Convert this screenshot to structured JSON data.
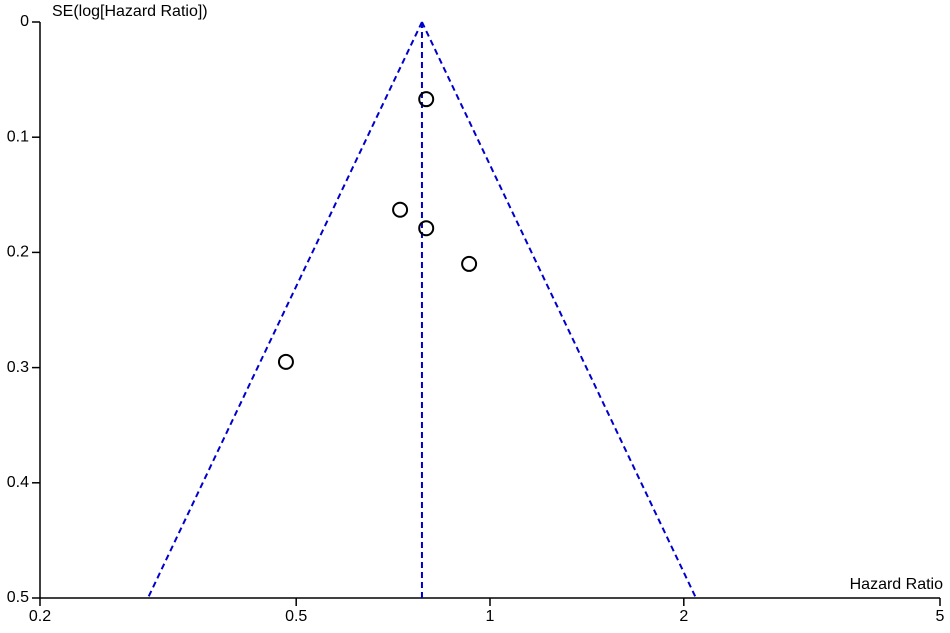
{
  "chart_data": {
    "type": "scatter",
    "x_label": "Hazard Ratio",
    "y_label": "SE(log[Hazard Ratio])",
    "x": [
      0.796,
      0.725,
      0.796,
      0.928,
      0.482
    ],
    "values": [
      0.067,
      0.163,
      0.179,
      0.21,
      0.295
    ],
    "pooled_estimate": 0.784,
    "xlim": [
      0.2,
      5
    ],
    "xticks": [
      0.2,
      0.5,
      1,
      2,
      5
    ],
    "x_log": true,
    "ylim": [
      0,
      0.5
    ],
    "yticks": [
      0,
      0.1,
      0.2,
      0.3,
      0.4,
      0.5
    ],
    "y_reversed": true,
    "marker_color": "#000000",
    "funnel_color": "#0000cc",
    "grid": false
  }
}
